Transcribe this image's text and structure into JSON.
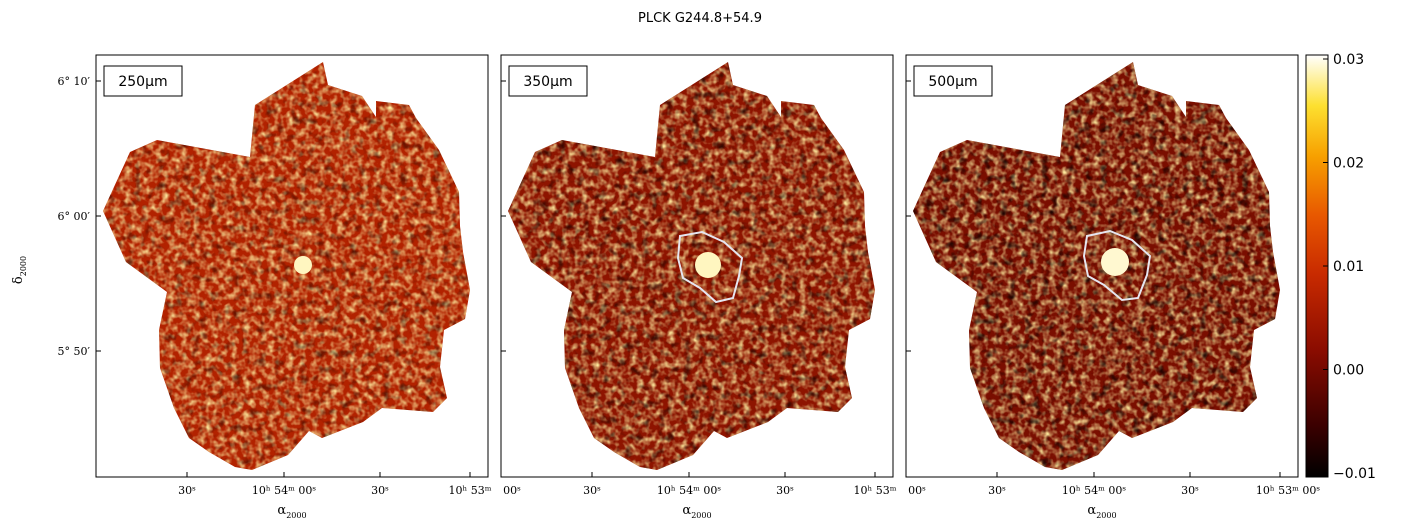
{
  "figure": {
    "title": "PLCK G244.8+54.9",
    "ylabel_main": "δ",
    "ylabel_sub": "2000",
    "xlabel_main": "α",
    "xlabel_sub": "2000"
  },
  "panels": [
    {
      "label": "250μm",
      "contour": false
    },
    {
      "label": "350μm",
      "contour": true
    },
    {
      "label": "500μm",
      "contour": true
    }
  ],
  "y_ticks": [
    "6° 10′",
    "6° 00′",
    "5° 50′"
  ],
  "x_ticks": [
    [
      "30ˢ",
      "10ʰ 54ᵐ 00ˢ",
      "30ˢ",
      "10ʰ 53ᵐ"
    ],
    [
      "00ˢ",
      "30ˢ",
      "10ʰ 54ᵐ 00ˢ",
      "30ˢ",
      "10ʰ 53ᵐ"
    ],
    [
      "00ˢ",
      "30ˢ",
      "10ʰ 54ᵐ 00ˢ",
      "30ˢ",
      "10ʰ 53ᵐ 00ˢ"
    ]
  ],
  "colorbar": {
    "ticks": [
      "0.03",
      "0.02",
      "0.01",
      "0.00",
      "−0.01"
    ],
    "values": [
      0.03,
      0.02,
      0.01,
      0.0,
      -0.01
    ],
    "min": -0.01,
    "max": 0.03,
    "colormap": [
      "#000000",
      "#4a0000",
      "#9a1200",
      "#d84000",
      "#f58a00",
      "#fcd400",
      "#ffffcc",
      "#ffffff"
    ]
  }
}
